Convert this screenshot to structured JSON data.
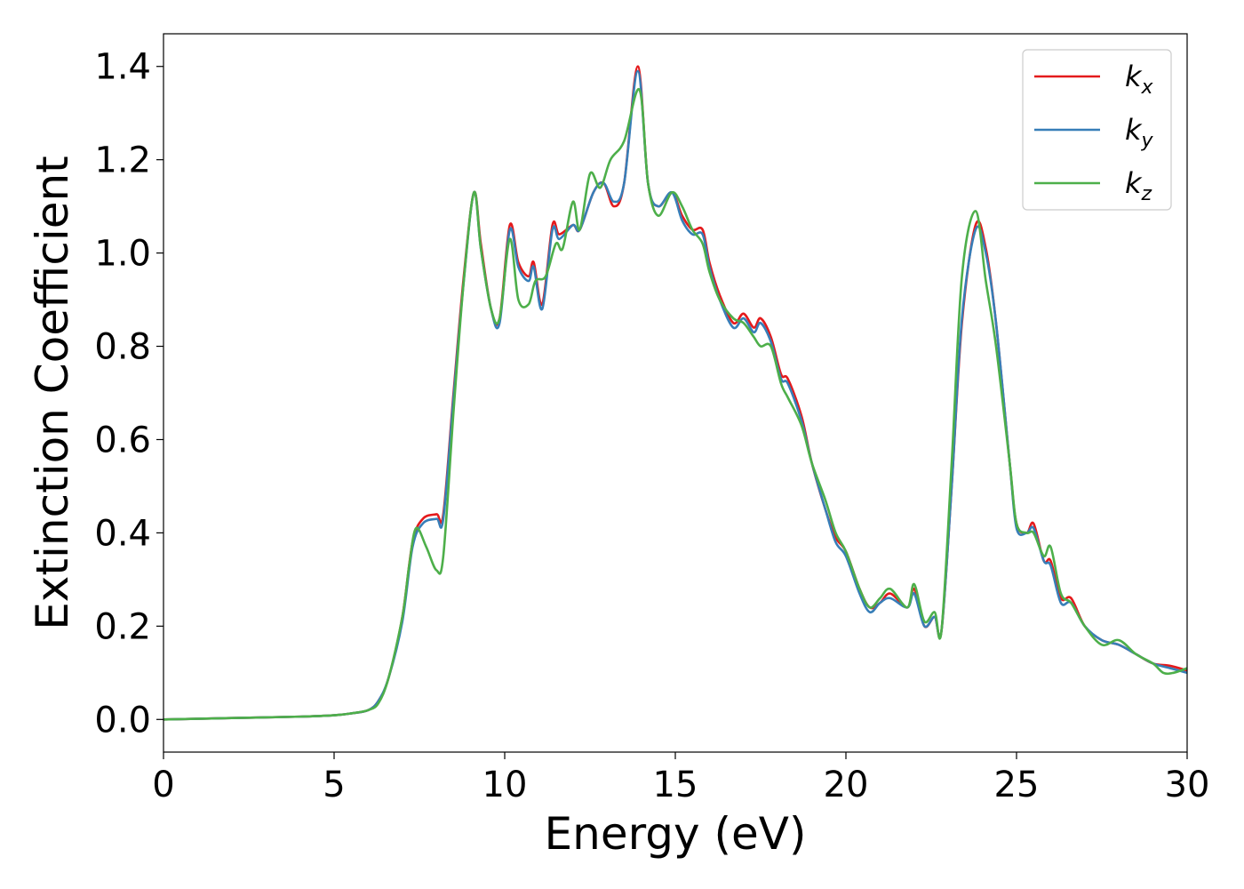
{
  "chart_data": {
    "type": "line",
    "title": "",
    "xlabel": "Energy (eV)",
    "ylabel": "Extinction Coefficient",
    "xlim": [
      0,
      30
    ],
    "ylim": [
      -0.07,
      1.47
    ],
    "xticks": [
      0,
      5,
      10,
      15,
      20,
      25,
      30
    ],
    "yticks": [
      0.0,
      0.2,
      0.4,
      0.6,
      0.8,
      1.0,
      1.2,
      1.4
    ],
    "grid": false,
    "legend_placement": "top-right",
    "series": [
      {
        "name": "k_x",
        "legend_base": "k",
        "legend_sub": "x",
        "color": "#e41a1c",
        "x": [
          0,
          2,
          4,
          5,
          5.5,
          6,
          6.3,
          6.6,
          7.0,
          7.3,
          7.6,
          8.0,
          8.2,
          8.5,
          8.8,
          9.1,
          9.3,
          9.6,
          9.85,
          10.15,
          10.4,
          10.7,
          10.85,
          11.1,
          11.4,
          11.6,
          12.0,
          12.2,
          12.6,
          12.9,
          13.2,
          13.5,
          13.9,
          14.2,
          14.5,
          14.9,
          15.2,
          15.5,
          15.8,
          16.0,
          16.3,
          16.7,
          17.0,
          17.3,
          17.5,
          17.8,
          18.1,
          18.3,
          18.7,
          19.0,
          19.4,
          19.7,
          20.0,
          20.4,
          20.7,
          21.0,
          21.3,
          21.8,
          22.0,
          22.3,
          22.6,
          22.8,
          23.1,
          23.4,
          23.8,
          24.1,
          24.4,
          24.8,
          25.0,
          25.3,
          25.5,
          25.8,
          26.0,
          26.3,
          26.6,
          27.0,
          27.5,
          28.0,
          28.5,
          29.0,
          29.5,
          30.0
        ],
        "y": [
          0.0,
          0.003,
          0.006,
          0.009,
          0.013,
          0.02,
          0.04,
          0.09,
          0.22,
          0.38,
          0.43,
          0.44,
          0.44,
          0.7,
          0.95,
          1.13,
          1.02,
          0.88,
          0.86,
          1.06,
          0.98,
          0.95,
          0.98,
          0.89,
          1.06,
          1.04,
          1.06,
          1.05,
          1.13,
          1.15,
          1.1,
          1.15,
          1.4,
          1.15,
          1.1,
          1.13,
          1.08,
          1.05,
          1.05,
          0.98,
          0.91,
          0.85,
          0.87,
          0.84,
          0.86,
          0.82,
          0.74,
          0.73,
          0.65,
          0.55,
          0.45,
          0.39,
          0.36,
          0.28,
          0.24,
          0.25,
          0.27,
          0.24,
          0.28,
          0.2,
          0.22,
          0.19,
          0.5,
          0.85,
          1.06,
          1.01,
          0.85,
          0.55,
          0.42,
          0.4,
          0.42,
          0.34,
          0.34,
          0.26,
          0.26,
          0.2,
          0.17,
          0.16,
          0.14,
          0.12,
          0.115,
          0.105
        ]
      },
      {
        "name": "k_y",
        "legend_base": "k",
        "legend_sub": "y",
        "color": "#377eb8",
        "x": [
          0,
          2,
          4,
          5,
          5.5,
          6,
          6.3,
          6.6,
          7.0,
          7.3,
          7.6,
          8.0,
          8.2,
          8.5,
          8.8,
          9.1,
          9.3,
          9.6,
          9.85,
          10.15,
          10.4,
          10.7,
          10.85,
          11.1,
          11.4,
          11.6,
          12.0,
          12.2,
          12.6,
          12.9,
          13.2,
          13.5,
          13.9,
          14.2,
          14.5,
          14.9,
          15.2,
          15.5,
          15.8,
          16.0,
          16.3,
          16.7,
          17.0,
          17.3,
          17.5,
          17.8,
          18.1,
          18.3,
          18.7,
          19.0,
          19.4,
          19.7,
          20.0,
          20.4,
          20.7,
          21.0,
          21.3,
          21.8,
          22.0,
          22.3,
          22.6,
          22.8,
          23.1,
          23.4,
          23.8,
          24.1,
          24.4,
          24.8,
          25.0,
          25.3,
          25.5,
          25.8,
          26.0,
          26.3,
          26.6,
          27.0,
          27.5,
          28.0,
          28.5,
          29.0,
          29.5,
          30.0
        ],
        "y": [
          0.0,
          0.003,
          0.006,
          0.009,
          0.013,
          0.02,
          0.04,
          0.09,
          0.21,
          0.37,
          0.42,
          0.43,
          0.43,
          0.69,
          0.94,
          1.13,
          1.01,
          0.88,
          0.85,
          1.05,
          0.97,
          0.94,
          0.97,
          0.88,
          1.05,
          1.03,
          1.06,
          1.05,
          1.13,
          1.15,
          1.11,
          1.15,
          1.39,
          1.15,
          1.1,
          1.13,
          1.07,
          1.04,
          1.04,
          0.97,
          0.9,
          0.84,
          0.86,
          0.83,
          0.85,
          0.81,
          0.73,
          0.72,
          0.64,
          0.55,
          0.45,
          0.38,
          0.35,
          0.27,
          0.23,
          0.25,
          0.26,
          0.24,
          0.27,
          0.2,
          0.22,
          0.19,
          0.5,
          0.86,
          1.05,
          1.0,
          0.85,
          0.55,
          0.41,
          0.4,
          0.41,
          0.34,
          0.33,
          0.25,
          0.25,
          0.2,
          0.17,
          0.16,
          0.14,
          0.12,
          0.11,
          0.1
        ]
      },
      {
        "name": "k_z",
        "legend_base": "k",
        "legend_sub": "z",
        "color": "#4daf4a",
        "x": [
          0,
          2,
          4,
          5,
          5.5,
          6,
          6.3,
          6.6,
          7.0,
          7.2,
          7.4,
          7.7,
          8.0,
          8.2,
          8.5,
          8.8,
          9.1,
          9.3,
          9.6,
          9.85,
          10.15,
          10.4,
          10.7,
          10.9,
          11.2,
          11.5,
          11.7,
          12.0,
          12.2,
          12.5,
          12.8,
          13.1,
          13.5,
          13.95,
          14.2,
          14.5,
          14.9,
          15.2,
          15.5,
          15.8,
          16.0,
          16.3,
          16.7,
          17.0,
          17.3,
          17.5,
          17.8,
          18.1,
          18.3,
          18.7,
          19.0,
          19.4,
          19.7,
          20.0,
          20.4,
          20.7,
          21.0,
          21.3,
          21.8,
          22.0,
          22.3,
          22.6,
          22.8,
          23.1,
          23.4,
          23.8,
          24.1,
          24.4,
          24.8,
          25.0,
          25.3,
          25.5,
          25.8,
          26.0,
          26.3,
          26.6,
          27.0,
          27.5,
          28.0,
          28.5,
          29.0,
          29.3,
          29.6,
          30.0
        ],
        "y": [
          0.0,
          0.003,
          0.006,
          0.009,
          0.013,
          0.02,
          0.035,
          0.09,
          0.22,
          0.33,
          0.41,
          0.37,
          0.32,
          0.35,
          0.66,
          0.94,
          1.13,
          1.01,
          0.88,
          0.86,
          1.03,
          0.9,
          0.89,
          0.94,
          0.95,
          1.02,
          1.01,
          1.11,
          1.05,
          1.17,
          1.14,
          1.2,
          1.24,
          1.35,
          1.15,
          1.08,
          1.13,
          1.1,
          1.05,
          1.02,
          0.96,
          0.9,
          0.86,
          0.85,
          0.82,
          0.8,
          0.8,
          0.72,
          0.69,
          0.63,
          0.55,
          0.47,
          0.4,
          0.36,
          0.28,
          0.24,
          0.26,
          0.28,
          0.24,
          0.29,
          0.21,
          0.23,
          0.19,
          0.55,
          0.95,
          1.09,
          0.94,
          0.8,
          0.55,
          0.42,
          0.4,
          0.4,
          0.35,
          0.37,
          0.27,
          0.25,
          0.2,
          0.16,
          0.17,
          0.14,
          0.12,
          0.1,
          0.1,
          0.11
        ]
      }
    ]
  }
}
